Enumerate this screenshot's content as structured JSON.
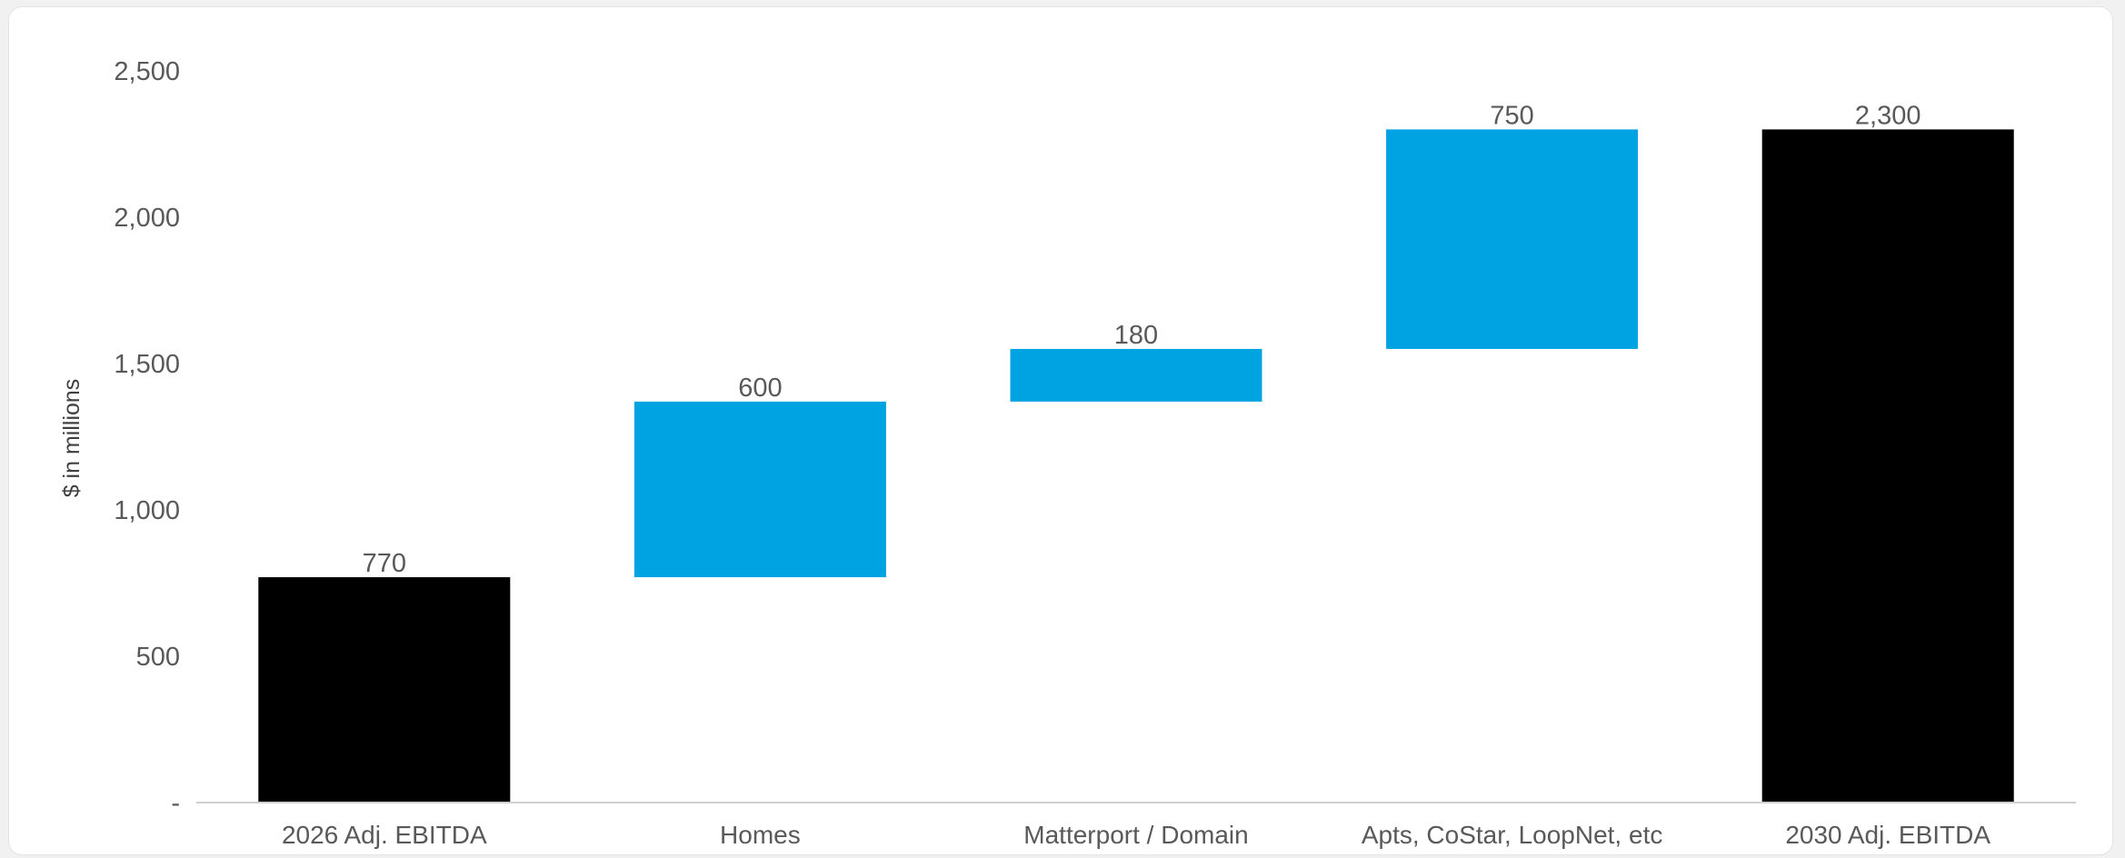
{
  "chart_data": {
    "type": "bar",
    "subtype": "waterfall",
    "title": "",
    "xlabel": "",
    "ylabel": "$ in millions",
    "ylim": [
      0,
      2500
    ],
    "yticks": [
      0,
      500,
      1000,
      1500,
      2000,
      2500
    ],
    "ytick_labels": [
      "-",
      "500",
      "1,000",
      "1,500",
      "2,000",
      "2,500"
    ],
    "grid": false,
    "legend": "none",
    "colors": {
      "total": "#000000",
      "increment": "#00a3e2"
    },
    "categories": [
      "2026 Adj. EBITDA",
      "Homes",
      "Matterport / Domain",
      "Apts, CoStar, LoopNet, etc",
      "2030 Adj. EBITDA"
    ],
    "bars": [
      {
        "category": "2026 Adj. EBITDA",
        "kind": "total",
        "start": 0,
        "end": 770,
        "value": 770,
        "label": "770"
      },
      {
        "category": "Homes",
        "kind": "increment",
        "start": 770,
        "end": 1370,
        "value": 600,
        "label": "600"
      },
      {
        "category": "Matterport / Domain",
        "kind": "increment",
        "start": 1370,
        "end": 1550,
        "value": 180,
        "label": "180"
      },
      {
        "category": "Apts, CoStar, LoopNet, etc",
        "kind": "increment",
        "start": 1550,
        "end": 2300,
        "value": 750,
        "label": "750"
      },
      {
        "category": "2030 Adj. EBITDA",
        "kind": "total",
        "start": 0,
        "end": 2300,
        "value": 2300,
        "label": "2,300"
      }
    ]
  }
}
